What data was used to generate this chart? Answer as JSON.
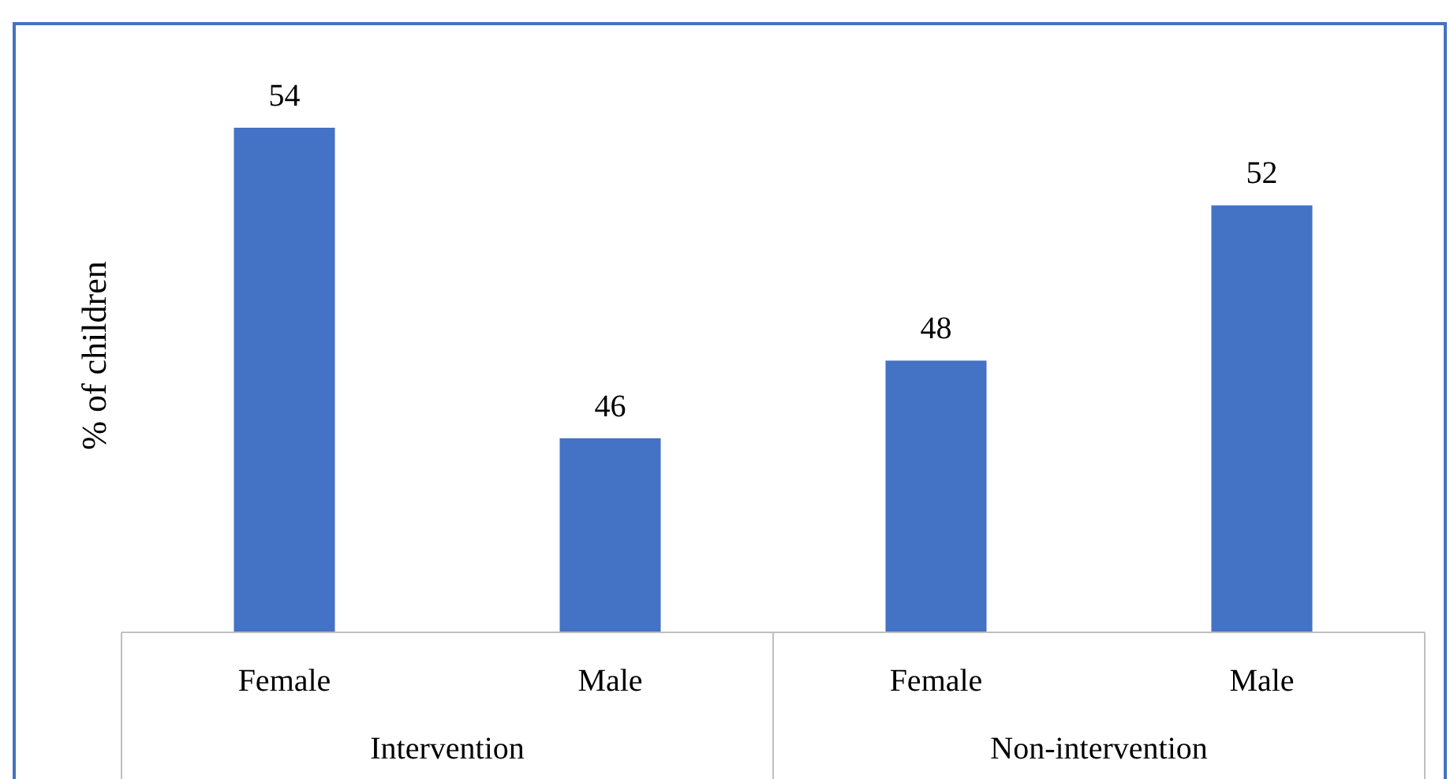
{
  "chart_data": {
    "type": "bar",
    "ylabel": "% of children",
    "categories": [
      "Female",
      "Male",
      "Female",
      "Male"
    ],
    "values": [
      54,
      46,
      48,
      52
    ],
    "color": "#4472c4",
    "ylim": [
      41,
      54
    ],
    "tick_labels": "x",
    "data_labels": true,
    "annotations": [
      "Intervention",
      "Non-intervention"
    ]
  }
}
